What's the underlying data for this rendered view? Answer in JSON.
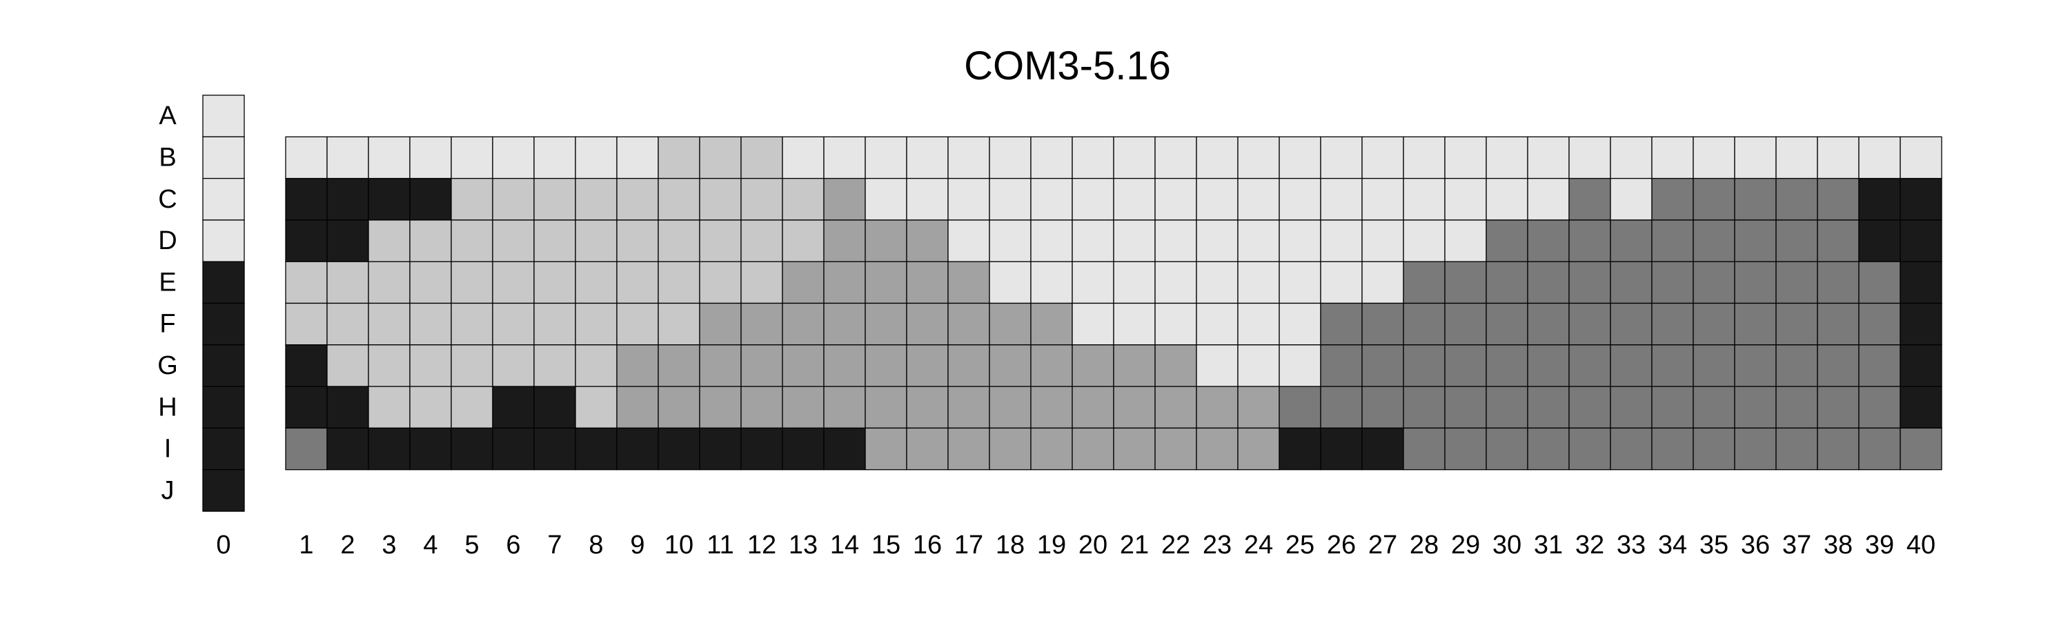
{
  "chart_data": {
    "type": "heatmap",
    "title": "COM3-5.16",
    "row_labels": [
      "A",
      "B",
      "C",
      "D",
      "E",
      "F",
      "G",
      "H",
      "I",
      "J"
    ],
    "column_labels": [
      "0",
      "1",
      "2",
      "3",
      "4",
      "5",
      "6",
      "7",
      "8",
      "9",
      "10",
      "11",
      "12",
      "13",
      "14",
      "15",
      "16",
      "17",
      "18",
      "19",
      "20",
      "21",
      "22",
      "23",
      "24",
      "25",
      "26",
      "27",
      "28",
      "29",
      "30",
      "31",
      "32",
      "33",
      "34",
      "35",
      "36",
      "37",
      "38",
      "39",
      "40"
    ],
    "legend": {
      "column": "0",
      "levels": [
        "1",
        "1",
        "1",
        "1",
        "5",
        "5",
        "5",
        "5",
        "5",
        "5"
      ]
    },
    "shade_colors": {
      "1": "#e6e6e6",
      "2": "#c8c8c8",
      "3": "#a2a2a2",
      "4": "#7a7a7a",
      "5": "#1a1a1a"
    },
    "grid": {
      "rows": [
        "B",
        "C",
        "D",
        "E",
        "F",
        "G",
        "H",
        "I"
      ],
      "columns_from": 1,
      "levels": [
        "1111111112221111111111111111111111111111",
        "5555222222222311111111111111111414444455",
        "5522222222222333111111111111144444444455",
        "2222222222223333311111111114444444444445",
        "2222222222333333333111111444444444444445",
        "5222222233333333333333111444444444444445",
        "5522255233333333333333334444444444444445",
        "4555555555555533333333335554444444444444"
      ]
    }
  }
}
